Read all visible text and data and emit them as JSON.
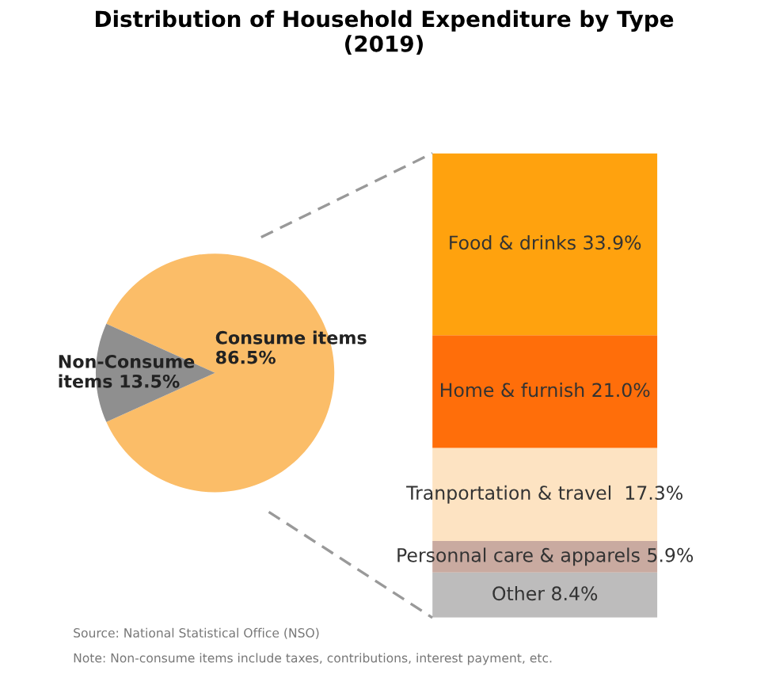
{
  "chart_data": [
    {
      "type": "pie",
      "title": "Distribution of Household Expenditure by Type\n(2019)",
      "categories": [
        "Consume items",
        "Non-Consume items"
      ],
      "values": [
        86.5,
        13.5
      ],
      "colors": [
        "#fbbd68",
        "#8f8f8f"
      ],
      "value_labels": [
        "86.5%",
        "13.5%"
      ],
      "annotations": [
        "Source: National Statistical Office (NSO)",
        "Note: Non-consume items include taxes, contributions, interest payment, etc."
      ]
    },
    {
      "type": "bar",
      "stacked": true,
      "categories": [
        null
      ],
      "tick_labels": false,
      "series": [
        {
          "color": "#bdbcbc",
          "values": [
            8.4
          ],
          "value_labels": [
            "Other 8.4%"
          ]
        },
        {
          "color": "#c9aaa0",
          "values": [
            5.9
          ],
          "value_labels": [
            "Personnal care & apparels 5.9%"
          ]
        },
        {
          "color": "#fde3c2",
          "values": [
            17.3
          ],
          "value_labels": [
            "Tranportation & travel  17.3%"
          ]
        },
        {
          "color": "#ff6e0a",
          "values": [
            21.0
          ],
          "value_labels": [
            "Home & furnish 21.0%"
          ]
        },
        {
          "color": "#ffa20e",
          "values": [
            33.9
          ],
          "value_labels": [
            "Food & drinks 33.9%"
          ]
        }
      ]
    }
  ]
}
